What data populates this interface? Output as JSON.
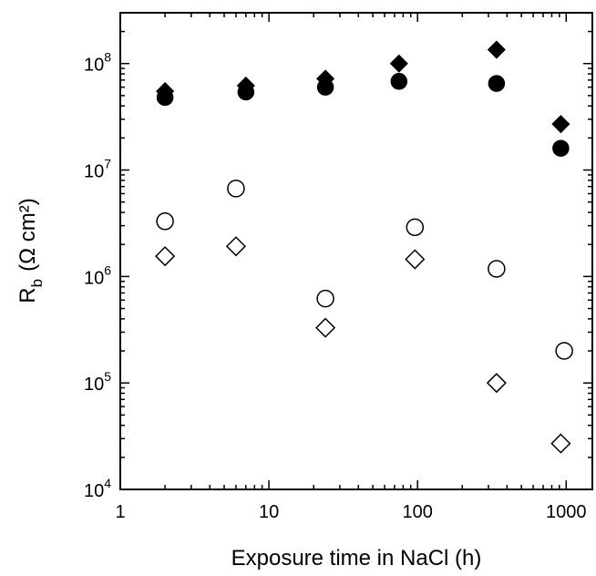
{
  "chart_data": {
    "type": "scatter",
    "x_scale": "log",
    "y_scale": "log",
    "xlim": [
      1,
      1500
    ],
    "ylim": [
      10000,
      300000000
    ],
    "xlabel": "Exposure time in NaCl (h)",
    "ylabel": {
      "main": "R",
      "subscript": "b",
      "units": "(Ω cm²)"
    },
    "x_ticks": [
      {
        "value": 1,
        "label": "1"
      },
      {
        "value": 10,
        "label": "10"
      },
      {
        "value": 100,
        "label": "100"
      },
      {
        "value": 1000,
        "label": "1000"
      }
    ],
    "y_ticks": [
      {
        "value": 10000,
        "base": "10",
        "exp": "4"
      },
      {
        "value": 100000,
        "base": "10",
        "exp": "5"
      },
      {
        "value": 1000000,
        "base": "10",
        "exp": "6"
      },
      {
        "value": 10000000,
        "base": "10",
        "exp": "7"
      },
      {
        "value": 100000000,
        "base": "10",
        "exp": "8"
      }
    ],
    "grid": false,
    "legend": null,
    "series": [
      {
        "marker": "diamond",
        "filled": true,
        "color": "#000000",
        "points": [
          {
            "x": 2,
            "y": 55000000
          },
          {
            "x": 7,
            "y": 62000000
          },
          {
            "x": 24,
            "y": 72000000
          },
          {
            "x": 75,
            "y": 100000000
          },
          {
            "x": 340,
            "y": 135000000
          },
          {
            "x": 920,
            "y": 27000000
          }
        ]
      },
      {
        "marker": "circle",
        "filled": true,
        "color": "#000000",
        "points": [
          {
            "x": 2,
            "y": 48000000
          },
          {
            "x": 7,
            "y": 54000000
          },
          {
            "x": 24,
            "y": 60000000
          },
          {
            "x": 75,
            "y": 68000000
          },
          {
            "x": 340,
            "y": 65000000
          },
          {
            "x": 920,
            "y": 16000000
          }
        ]
      },
      {
        "marker": "circle",
        "filled": false,
        "color": "#000000",
        "points": [
          {
            "x": 2,
            "y": 3300000
          },
          {
            "x": 6,
            "y": 6700000
          },
          {
            "x": 24,
            "y": 620000
          },
          {
            "x": 96,
            "y": 2900000
          },
          {
            "x": 340,
            "y": 1180000
          },
          {
            "x": 970,
            "y": 200000
          }
        ]
      },
      {
        "marker": "diamond",
        "filled": false,
        "color": "#000000",
        "points": [
          {
            "x": 2,
            "y": 1550000
          },
          {
            "x": 6,
            "y": 1920000
          },
          {
            "x": 24,
            "y": 330000
          },
          {
            "x": 96,
            "y": 1450000
          },
          {
            "x": 340,
            "y": 100000
          },
          {
            "x": 920,
            "y": 27000
          }
        ]
      }
    ]
  }
}
